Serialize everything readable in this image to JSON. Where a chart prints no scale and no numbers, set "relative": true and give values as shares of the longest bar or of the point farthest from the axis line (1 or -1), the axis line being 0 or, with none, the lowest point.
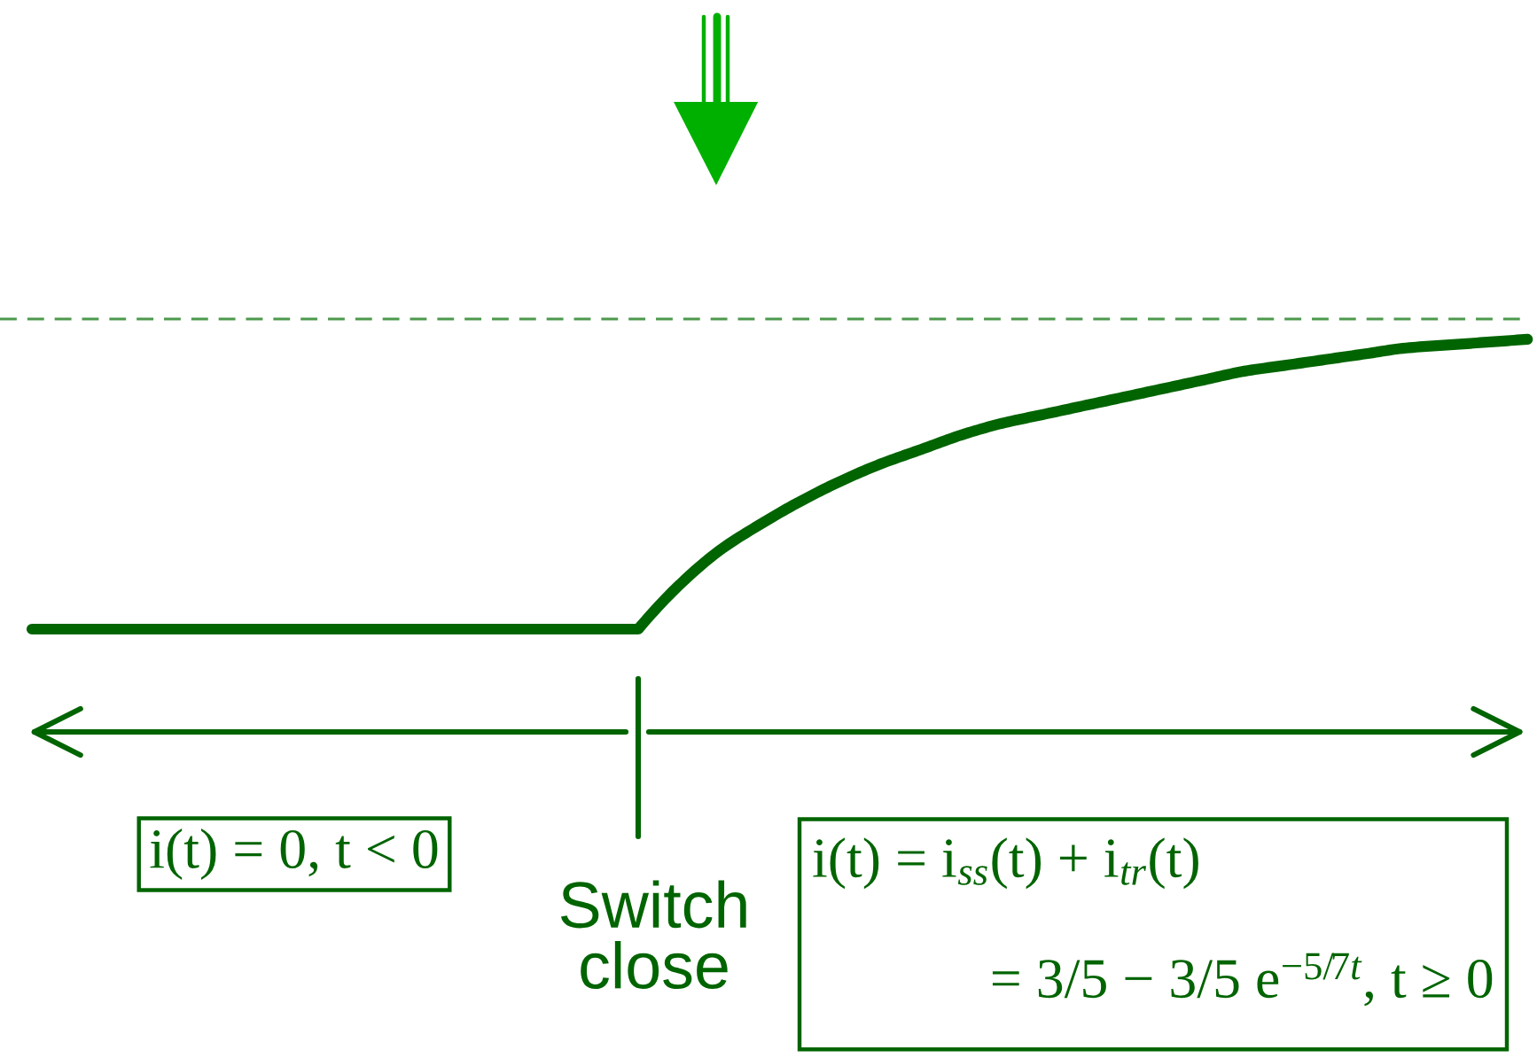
{
  "chart_data": {
    "type": "line",
    "relative": true,
    "categories": [
      null,
      null,
      null,
      null,
      null,
      null,
      null,
      null,
      null,
      null,
      null,
      null,
      null,
      null,
      null,
      null,
      null,
      null,
      null,
      null,
      null,
      null,
      null,
      null,
      null,
      null,
      null,
      null,
      null,
      null,
      null,
      null,
      null,
      null,
      null,
      null,
      null,
      null
    ],
    "series": [
      {
        "color": "#006400",
        "values": [
          0,
          0,
          0,
          0,
          0,
          0,
          0,
          0,
          0,
          0,
          0,
          0,
          0,
          0,
          0,
          0,
          0.15,
          0.27,
          0.36,
          0.44,
          0.51,
          0.57,
          0.62,
          0.67,
          0.71,
          0.74,
          0.77,
          0.8,
          0.83,
          0.86,
          0.89,
          0.91,
          0.93,
          0.95,
          0.97,
          0.98,
          0.99,
          1
        ]
      }
    ],
    "line_style": "solid",
    "ref_lines": [
      {
        "axis": "y",
        "value": 1.07,
        "color": "#4d994d",
        "line_style": "dashed"
      }
    ],
    "annotations": [
      "i(t) = 0, t < 0",
      "Switch\nclose",
      "i(t) = i$_{ss}$(t) + i$_{tr}$(t)",
      "= 3/5 − 3/5 e$^{−5/7t}$, t ≥ 0"
    ]
  }
}
